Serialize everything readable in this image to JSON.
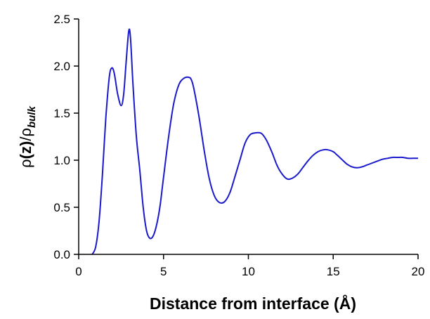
{
  "chart_data": {
    "type": "line",
    "title": "",
    "xlabel": "Distance from interface (Å)",
    "ylabel": {
      "rho": "ρ",
      "z_part": "(z)",
      "slash": "/",
      "rho2": "ρ",
      "subscript": "bulk"
    },
    "xlim": [
      0,
      20
    ],
    "ylim": [
      0,
      2.5
    ],
    "xticks": [
      0,
      5,
      10,
      15,
      20
    ],
    "yticks": [
      0.0,
      0.5,
      1.0,
      1.5,
      2.0,
      2.5
    ],
    "xtick_labels": [
      "0",
      "5",
      "10",
      "15",
      "20"
    ],
    "ytick_labels": [
      "0.0",
      "0.5",
      "1.0",
      "1.5",
      "2.0",
      "2.5"
    ],
    "grid": false,
    "legend": "none",
    "series": [
      {
        "color": "#1a1acc",
        "x": [
          0.8,
          1.0,
          1.2,
          1.4,
          1.6,
          1.8,
          1.95,
          2.1,
          2.3,
          2.5,
          2.65,
          2.8,
          2.95,
          3.05,
          3.2,
          3.4,
          3.6,
          3.8,
          4.0,
          4.2,
          4.4,
          4.6,
          4.8,
          5.0,
          5.3,
          5.6,
          5.9,
          6.2,
          6.5,
          6.65,
          6.8,
          7.1,
          7.4,
          7.7,
          8.0,
          8.3,
          8.6,
          8.9,
          9.2,
          9.5,
          9.8,
          10.1,
          10.4,
          10.7,
          10.9,
          11.1,
          11.4,
          11.7,
          12.0,
          12.3,
          12.6,
          12.9,
          13.2,
          13.5,
          13.8,
          14.1,
          14.4,
          14.7,
          15.0,
          15.2,
          15.5,
          15.8,
          16.1,
          16.4,
          16.7,
          17.0,
          17.3,
          17.6,
          17.9,
          18.2,
          18.5,
          18.8,
          19.1,
          19.4,
          19.7,
          20.0
        ],
        "y": [
          0.0,
          0.08,
          0.35,
          0.85,
          1.45,
          1.88,
          1.98,
          1.92,
          1.7,
          1.58,
          1.7,
          2.05,
          2.37,
          2.3,
          1.8,
          1.25,
          0.9,
          0.5,
          0.25,
          0.17,
          0.2,
          0.32,
          0.52,
          0.82,
          1.25,
          1.6,
          1.8,
          1.87,
          1.88,
          1.85,
          1.75,
          1.45,
          1.1,
          0.8,
          0.62,
          0.55,
          0.56,
          0.65,
          0.82,
          1.0,
          1.18,
          1.27,
          1.29,
          1.29,
          1.26,
          1.2,
          1.08,
          0.94,
          0.85,
          0.8,
          0.81,
          0.85,
          0.92,
          0.99,
          1.05,
          1.09,
          1.11,
          1.11,
          1.09,
          1.06,
          1.01,
          0.96,
          0.93,
          0.92,
          0.93,
          0.95,
          0.97,
          0.99,
          1.01,
          1.02,
          1.03,
          1.03,
          1.03,
          1.02,
          1.02,
          1.02
        ]
      }
    ]
  }
}
